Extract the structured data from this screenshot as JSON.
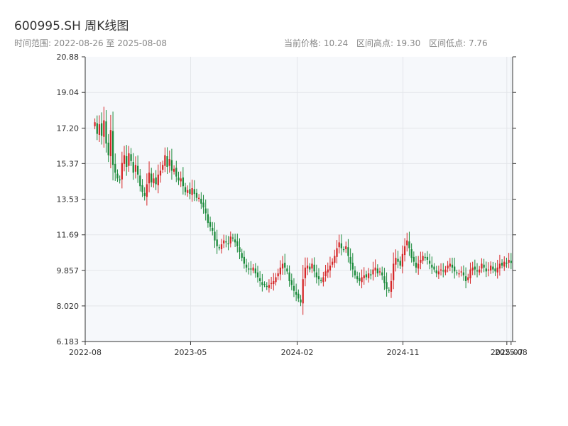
{
  "header": {
    "title": "600995.SH 周K线图",
    "date_range": "时间范围: 2022-08-26 至 2025-08-08",
    "current_price": "当前价格: 10.24",
    "range_high": "区间高点: 19.30",
    "range_low": "区间低点: 7.76"
  },
  "colors": {
    "up": "#d62728",
    "down": "#1a8a3a",
    "plot_bg": "#f6f8fb",
    "grid": "#e3e6ea",
    "axis": "#333333"
  },
  "chart_data": {
    "type": "candlestick",
    "frequency": "weekly",
    "xlabel": "",
    "ylabel": "",
    "ylim": [
      6.183,
      20.88
    ],
    "y_ticks": [
      "20.88",
      "19.04",
      "17.20",
      "15.37",
      "13.53",
      "11.69",
      "9.857",
      "8.020",
      "6.183"
    ],
    "x_range": [
      "2022-08-26",
      "2025-08-08"
    ],
    "x_ticks": [
      {
        "date": "2022-08-01",
        "label": "2022-08"
      },
      {
        "date": "2023-05-01",
        "label": "2023-05"
      },
      {
        "date": "2024-02-01",
        "label": "2024-02"
      },
      {
        "date": "2024-11-01",
        "label": "2024-11"
      },
      {
        "date": "2025-07-28",
        "label": "2025-07"
      },
      {
        "date": "2025-08-08",
        "label": "2025-08"
      }
    ],
    "grid": true,
    "closes": [
      17.5,
      16.9,
      17.4,
      16.8,
      17.6,
      16.4,
      15.8,
      17.1,
      15.3,
      14.9,
      14.6,
      14.5,
      15.4,
      15.8,
      15.2,
      15.9,
      15.5,
      14.9,
      15.3,
      14.8,
      14.2,
      13.9,
      13.7,
      14.3,
      14.9,
      14.4,
      14.6,
      14.3,
      14.8,
      15.0,
      15.3,
      15.8,
      15.2,
      15.6,
      15.0,
      15.1,
      14.7,
      14.5,
      14.6,
      14.2,
      13.9,
      14.0,
      13.8,
      14.1,
      13.8,
      13.6,
      13.6,
      13.3,
      13.1,
      12.8,
      12.3,
      12.1,
      11.9,
      11.4,
      11.1,
      11.0,
      11.2,
      11.4,
      11.3,
      11.2,
      11.6,
      11.5,
      11.3,
      11.1,
      10.8,
      10.5,
      10.2,
      10.0,
      9.9,
      9.9,
      10.0,
      9.7,
      9.5,
      9.3,
      9.1,
      9.1,
      9.0,
      9.1,
      9.2,
      9.3,
      9.5,
      9.7,
      10.0,
      10.2,
      10.0,
      9.8,
      9.3,
      9.1,
      8.8,
      8.6,
      8.4,
      8.2,
      9.4,
      10.0,
      10.1,
      9.9,
      10.2,
      9.8,
      9.5,
      9.4,
      9.3,
      9.5,
      9.8,
      9.9,
      10.1,
      10.3,
      10.6,
      11.0,
      11.3,
      11.0,
      10.9,
      11.1,
      10.6,
      10.2,
      9.9,
      9.6,
      9.4,
      9.3,
      9.5,
      9.6,
      9.5,
      9.7,
      9.6,
      9.9,
      10.0,
      9.7,
      9.8,
      9.6,
      9.2,
      8.9,
      8.8,
      9.3,
      10.2,
      10.5,
      10.3,
      10.1,
      10.7,
      11.1,
      11.4,
      11.0,
      10.5,
      10.3,
      10.0,
      10.2,
      10.4,
      10.6,
      10.5,
      10.4,
      10.2,
      10.0,
      9.9,
      9.7,
      9.8,
      9.9,
      9.8,
      9.9,
      10.1,
      10.2,
      10.0,
      9.8,
      9.7,
      9.7,
      9.8,
      9.6,
      9.3,
      9.5,
      9.9,
      10.0,
      9.9,
      9.8,
      9.9,
      10.2,
      10.0,
      9.8,
      9.9,
      10.1,
      9.9,
      9.8,
      10.0,
      10.2,
      10.1,
      10.3,
      10.2,
      10.4,
      10.24
    ],
    "last_close": 10.24,
    "range_high": 19.3,
    "range_low": 7.76
  }
}
